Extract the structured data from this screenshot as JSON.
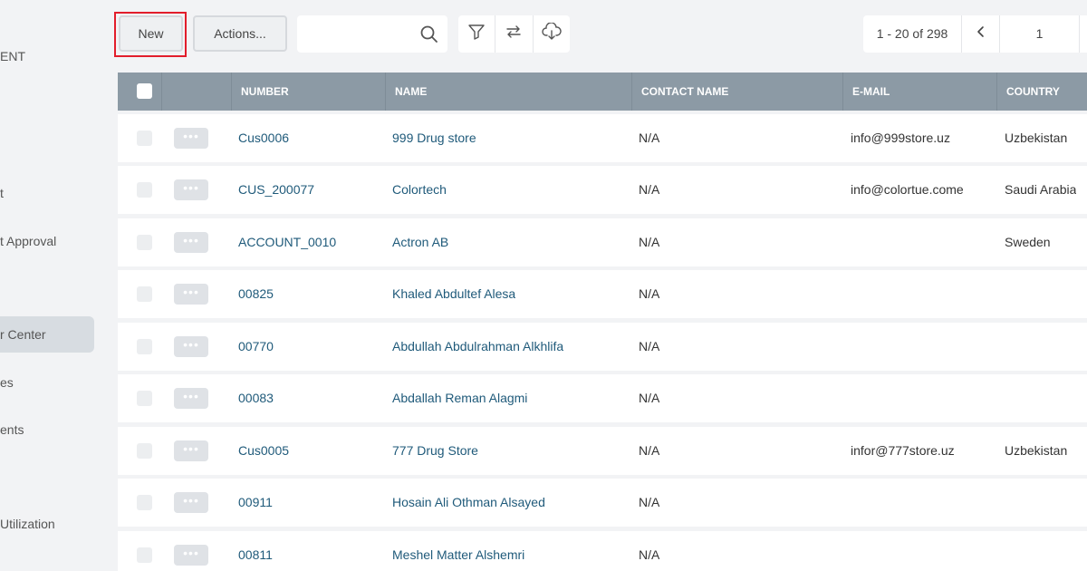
{
  "sidebar": {
    "items": [
      {
        "label": "ENT"
      },
      {
        "label": "t"
      },
      {
        "label": "t Approval"
      },
      {
        "label": "r Center"
      },
      {
        "label": "es"
      },
      {
        "label": "ents"
      },
      {
        "label": " Utilization"
      }
    ]
  },
  "toolbar": {
    "new_label": "New",
    "actions_label": "Actions...",
    "search_placeholder": "",
    "search_value": ""
  },
  "pager": {
    "range": "1 - 20 of 298",
    "page": "1"
  },
  "table": {
    "columns": [
      "NUMBER",
      "NAME",
      "CONTACT NAME",
      "E-MAIL",
      "COUNTRY"
    ],
    "rows": [
      {
        "number": "Cus0006",
        "name": "999 Drug store",
        "contact": "N/A",
        "email": "info@999store.uz",
        "country": "Uzbekistan"
      },
      {
        "number": "CUS_200077",
        "name": "Colortech",
        "contact": "N/A",
        "email": "info@colortue.come",
        "country": "Saudi Arabia"
      },
      {
        "number": "ACCOUNT_0010",
        "name": "Actron AB",
        "contact": "N/A",
        "email": "",
        "country": "Sweden"
      },
      {
        "number": "00825",
        "name": "Khaled Abdultef Alesa",
        "contact": "N/A",
        "email": "",
        "country": ""
      },
      {
        "number": "00770",
        "name": "Abdullah Abdulrahman Alkhlifa",
        "contact": "N/A",
        "email": "",
        "country": ""
      },
      {
        "number": "00083",
        "name": "Abdallah Reman Alagmi",
        "contact": "N/A",
        "email": "",
        "country": ""
      },
      {
        "number": "Cus0005",
        "name": "777 Drug Store",
        "contact": "N/A",
        "email": "infor@777store.uz",
        "country": "Uzbekistan"
      },
      {
        "number": "00911",
        "name": "Hosain Ali Othman Alsayed",
        "contact": "N/A",
        "email": "",
        "country": ""
      },
      {
        "number": "00811",
        "name": "Meshel Matter Alshemri",
        "contact": "N/A",
        "email": "",
        "country": ""
      }
    ],
    "row_menu_label": "•••"
  },
  "colors": {
    "header_bg": "#8c9aa5",
    "link": "#1f5a7a",
    "highlight_outline": "#e21d2b",
    "sidebar_active_bg": "#d7dce1"
  },
  "icons": [
    "search-icon",
    "filter-icon",
    "swap-icon",
    "cloud-download-icon",
    "chevron-left-icon",
    "chevron-right-icon",
    "more-icon"
  ]
}
